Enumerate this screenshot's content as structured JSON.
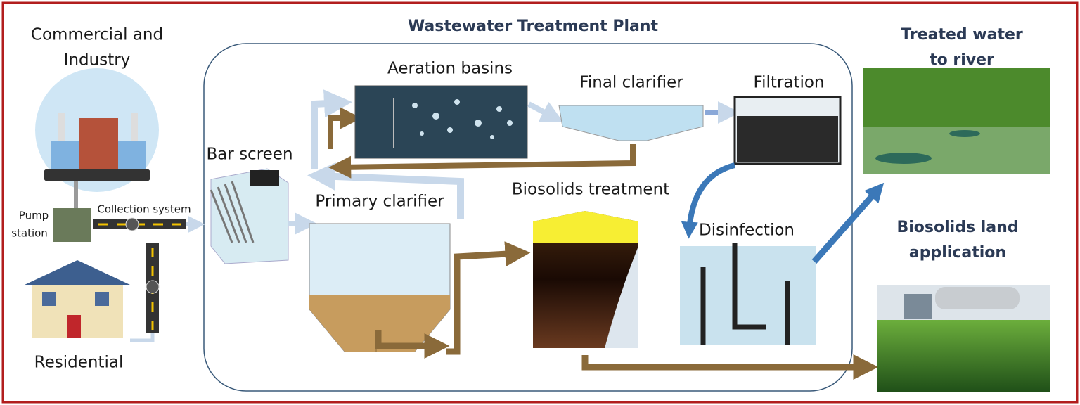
{
  "title": "Wastewater Treatment Plant",
  "sources": {
    "commercial": {
      "lines": [
        "Commercial and",
        "Industry"
      ]
    },
    "pump_station": {
      "lines": [
        "Pump",
        "station"
      ]
    },
    "collection_system": "Collection system",
    "residential": "Residential"
  },
  "stages": {
    "bar_screen": "Bar screen",
    "aeration_basins": "Aeration basins",
    "final_clarifier": "Final clarifier",
    "filtration": "Filtration",
    "primary_clarifier": "Primary clarifier",
    "biosolids_treatment": "Biosolids treatment",
    "disinfection": "Disinfection"
  },
  "outputs": {
    "treated_water": {
      "lines": [
        "Treated water",
        "to river"
      ]
    },
    "land_application": {
      "lines": [
        "Biosolids land",
        "application"
      ]
    }
  }
}
